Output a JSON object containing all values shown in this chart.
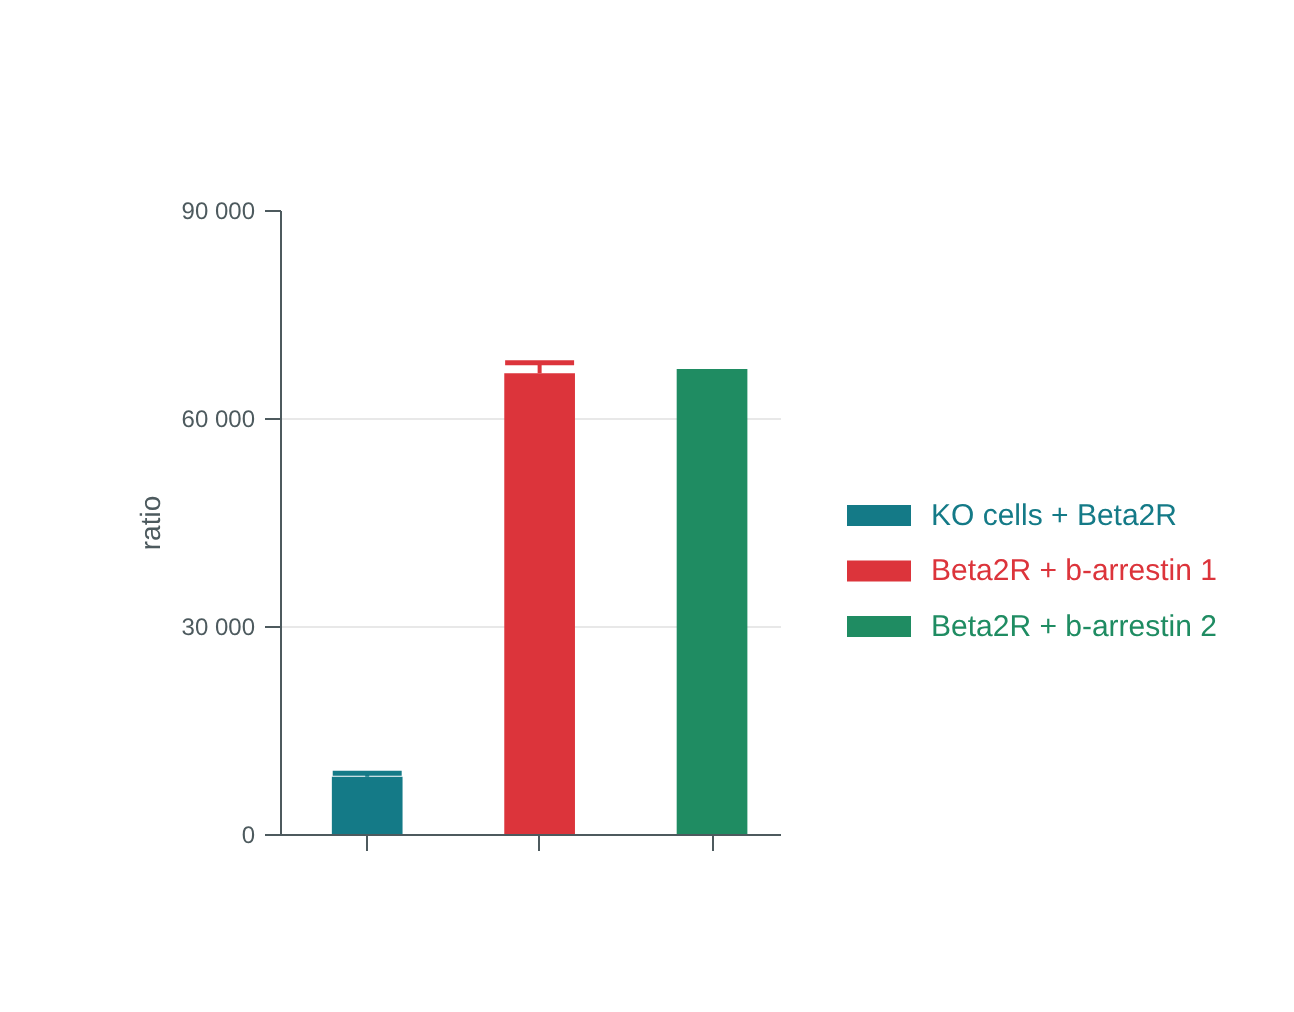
{
  "chart_data": {
    "type": "bar",
    "ylabel": "ratio",
    "categories": [
      null,
      null,
      null
    ],
    "series": [
      {
        "name": "KO cells + Beta2R",
        "color": "#147a87",
        "values": [
          8400,
          null,
          null
        ],
        "errors": [
          [
            8400,
            8900
          ],
          null,
          null
        ]
      },
      {
        "name": "Beta2R + b-arrestin 1",
        "color": "#dc343b",
        "values": [
          null,
          66600,
          null
        ],
        "errors": [
          null,
          [
            66600,
            68100
          ],
          null
        ]
      },
      {
        "name": "Beta2R + b-arrestin 2",
        "color": "#1f8c62",
        "values": [
          null,
          null,
          67200
        ],
        "errors": [
          null,
          null,
          null
        ]
      }
    ],
    "ylim": [
      0,
      90000
    ],
    "yticks": [
      {
        "value": 0,
        "label": "0"
      },
      {
        "value": 30000,
        "label": "30 000"
      },
      {
        "value": 60000,
        "label": "60 000"
      },
      {
        "value": 90000,
        "label": "90 000"
      }
    ],
    "grid": "y",
    "legend": "right",
    "tick_labels": "y"
  }
}
